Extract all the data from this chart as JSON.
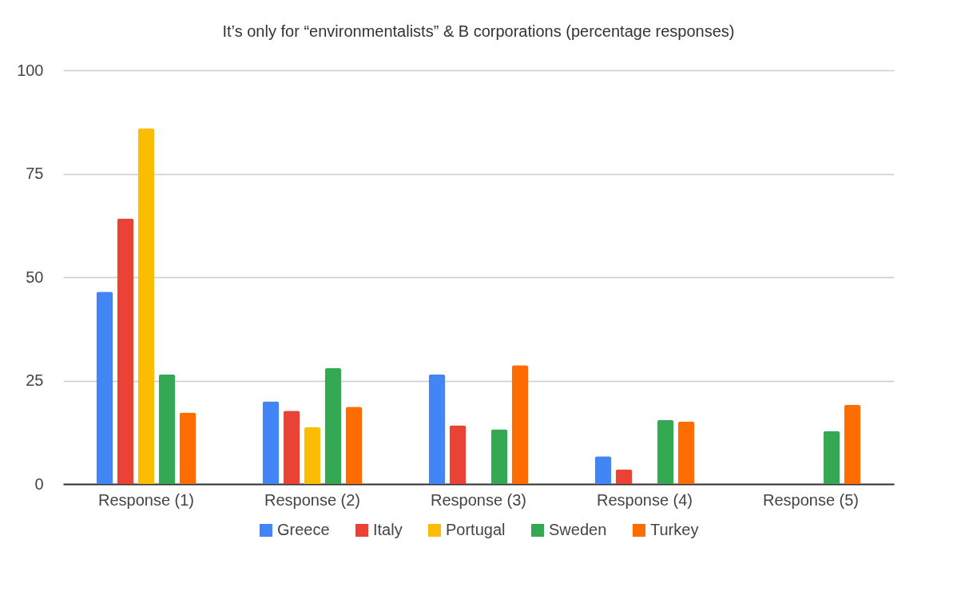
{
  "chart_data": {
    "type": "bar",
    "title": "It’s only for “environmentalists” & B corporations (percentage responses)",
    "categories": [
      "Response (1)",
      "Response (2)",
      "Response (3)",
      "Response (4)",
      "Response (5)"
    ],
    "series": [
      {
        "name": "Greece",
        "color": "#4285f4",
        "values": [
          46.5,
          20,
          26.5,
          6.7,
          null
        ]
      },
      {
        "name": "Italy",
        "color": "#ea4335",
        "values": [
          64.2,
          17.7,
          14.2,
          3.5,
          null
        ]
      },
      {
        "name": "Portugal",
        "color": "#fbbc04",
        "values": [
          86,
          13.7,
          null,
          null,
          null
        ]
      },
      {
        "name": "Sweden",
        "color": "#34a853",
        "values": [
          26.5,
          28,
          13.2,
          15.5,
          12.8
        ]
      },
      {
        "name": "Turkey",
        "color": "#ff6d01",
        "values": [
          17.3,
          18.7,
          28.7,
          15.1,
          19.1
        ]
      }
    ],
    "ylim": [
      0,
      100
    ],
    "yticks": [
      0,
      25,
      50,
      75,
      100
    ],
    "grid": "y",
    "legend": "bottom"
  }
}
